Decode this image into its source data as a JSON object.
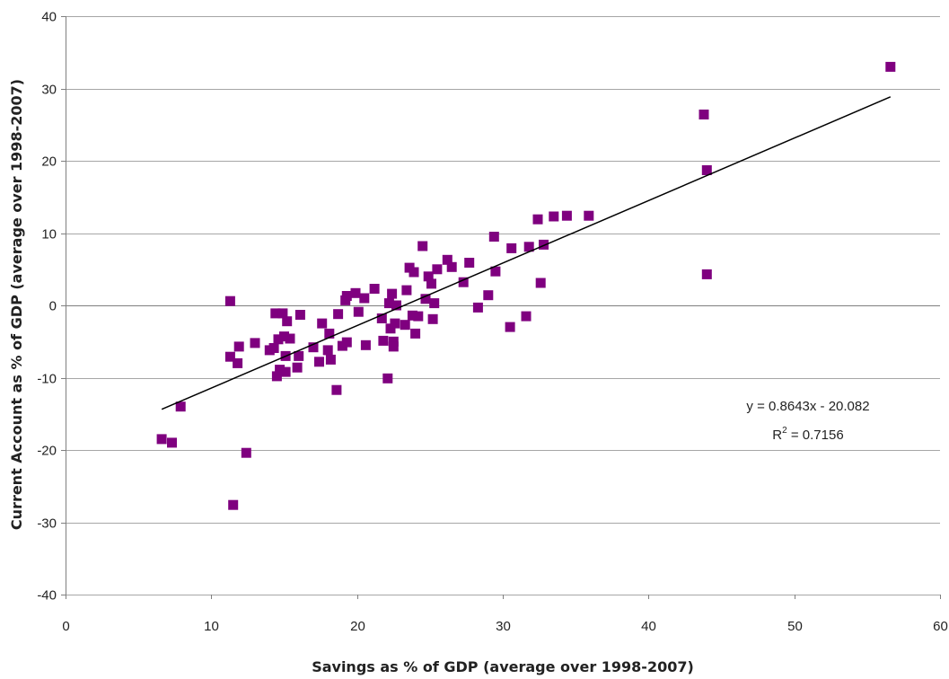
{
  "chart_data": {
    "type": "scatter",
    "xlabel": "Savings as % of GDP (average over 1998-2007)",
    "ylabel": "Current Account as % of GDP (average over 1998-2007)",
    "xlim": [
      0,
      60
    ],
    "ylim": [
      -40,
      40
    ],
    "x_ticks": [
      0,
      10,
      20,
      30,
      40,
      50,
      60
    ],
    "y_ticks": [
      -40,
      -30,
      -20,
      -10,
      0,
      10,
      20,
      30,
      40
    ],
    "x_tick_labels": [
      "0",
      "10",
      "20",
      "30",
      "40",
      "50",
      "60"
    ],
    "y_tick_labels": [
      "-40",
      "-30",
      "-20",
      "-10",
      "0",
      "10",
      "20",
      "30",
      "40"
    ],
    "grid": "horizontal",
    "marker_color": "#7f007f",
    "trendline": {
      "slope": 0.8643,
      "intercept": -20.082,
      "x_range": [
        6.6,
        56.6
      ],
      "equation_label": "y = 0.8643x - 20.082",
      "r2_prefix": "R",
      "r2_sup": "2",
      "r2_suffix": " = 0.7156"
    },
    "points": [
      [
        6.6,
        -18.5
      ],
      [
        7.3,
        -19.0
      ],
      [
        7.9,
        -14.0
      ],
      [
        11.3,
        0.6
      ],
      [
        11.3,
        -7.1
      ],
      [
        11.5,
        -27.6
      ],
      [
        11.8,
        -8.0
      ],
      [
        11.9,
        -5.7
      ],
      [
        12.4,
        -20.4
      ],
      [
        13.0,
        -5.2
      ],
      [
        14.0,
        -6.2
      ],
      [
        14.3,
        -5.9
      ],
      [
        14.4,
        -1.1
      ],
      [
        14.5,
        -9.8
      ],
      [
        14.6,
        -4.7
      ],
      [
        14.7,
        -8.9
      ],
      [
        14.9,
        -1.1
      ],
      [
        15.0,
        -4.3
      ],
      [
        15.1,
        -7.0
      ],
      [
        15.1,
        -9.2
      ],
      [
        15.2,
        -2.2
      ],
      [
        15.4,
        -4.6
      ],
      [
        15.9,
        -8.6
      ],
      [
        16.0,
        -7.0
      ],
      [
        16.1,
        -1.3
      ],
      [
        17.0,
        -5.8
      ],
      [
        17.4,
        -7.8
      ],
      [
        17.6,
        -2.5
      ],
      [
        18.0,
        -6.2
      ],
      [
        18.1,
        -3.9
      ],
      [
        18.2,
        -7.5
      ],
      [
        18.6,
        -11.7
      ],
      [
        18.7,
        -1.2
      ],
      [
        19.0,
        -5.6
      ],
      [
        19.2,
        0.7
      ],
      [
        19.3,
        1.3
      ],
      [
        19.3,
        -5.1
      ],
      [
        19.9,
        1.7
      ],
      [
        20.1,
        -0.9
      ],
      [
        20.5,
        1.0
      ],
      [
        20.6,
        -5.5
      ],
      [
        21.2,
        2.3
      ],
      [
        21.7,
        -1.8
      ],
      [
        21.8,
        -4.9
      ],
      [
        22.1,
        -10.1
      ],
      [
        22.2,
        0.3
      ],
      [
        22.3,
        -3.2
      ],
      [
        22.4,
        1.6
      ],
      [
        22.5,
        -5.0
      ],
      [
        22.5,
        -5.7
      ],
      [
        22.6,
        -2.5
      ],
      [
        22.7,
        0.0
      ],
      [
        23.3,
        -2.7
      ],
      [
        23.4,
        2.1
      ],
      [
        23.6,
        5.2
      ],
      [
        23.8,
        -1.4
      ],
      [
        23.9,
        4.6
      ],
      [
        24.0,
        -3.9
      ],
      [
        24.2,
        -1.5
      ],
      [
        24.5,
        8.2
      ],
      [
        24.7,
        0.9
      ],
      [
        24.9,
        4.0
      ],
      [
        25.1,
        3.0
      ],
      [
        25.2,
        -1.9
      ],
      [
        25.3,
        0.3
      ],
      [
        25.5,
        5.0
      ],
      [
        26.2,
        6.3
      ],
      [
        26.5,
        5.3
      ],
      [
        27.3,
        3.2
      ],
      [
        27.7,
        5.9
      ],
      [
        28.3,
        -0.3
      ],
      [
        29.0,
        1.4
      ],
      [
        29.4,
        9.5
      ],
      [
        29.5,
        4.7
      ],
      [
        30.5,
        -3.0
      ],
      [
        30.6,
        7.9
      ],
      [
        31.6,
        -1.5
      ],
      [
        31.8,
        8.1
      ],
      [
        32.4,
        11.9
      ],
      [
        32.6,
        3.1
      ],
      [
        32.8,
        8.4
      ],
      [
        33.5,
        12.3
      ],
      [
        34.4,
        12.4
      ],
      [
        35.9,
        12.4
      ],
      [
        43.8,
        26.4
      ],
      [
        44.0,
        18.7
      ],
      [
        44.0,
        4.3
      ],
      [
        56.6,
        33.0
      ]
    ]
  }
}
